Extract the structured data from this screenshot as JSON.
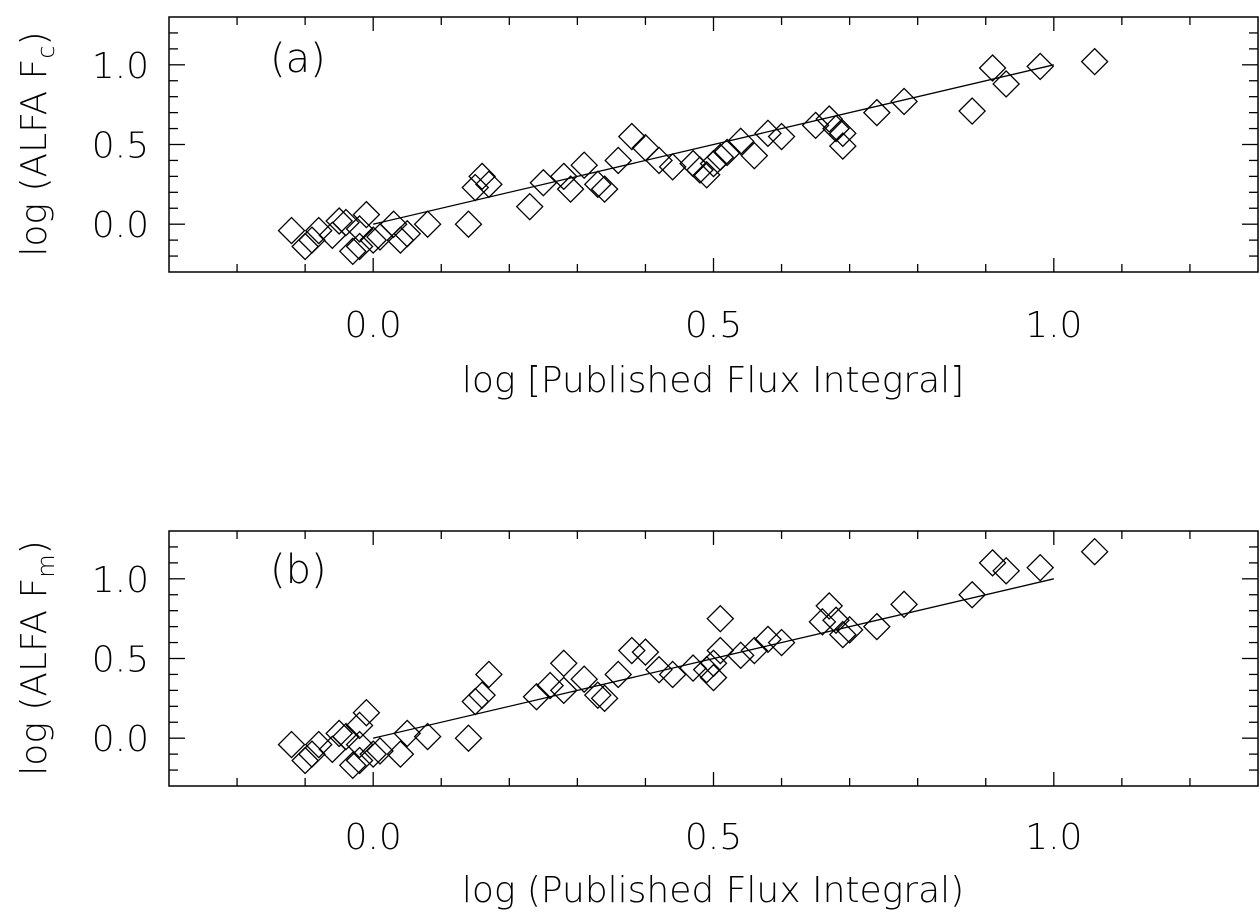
{
  "chart_data": [
    {
      "type": "scatter",
      "panel_label": "(a)",
      "xlabel": "log [Published Flux Integral]",
      "ylabel": "log (ALFA F",
      "ylabel_sub": "c",
      "ylabel_close": ")",
      "xlim": [
        -0.3,
        1.3
      ],
      "ylim": [
        -0.3,
        1.3
      ],
      "x_ticks": [
        0.0,
        0.5,
        1.0
      ],
      "x_tick_labels": [
        "0.0",
        "0.5",
        "1.0"
      ],
      "y_ticks": [
        0.0,
        0.5,
        1.0
      ],
      "y_tick_labels": [
        "0.0",
        "0.5",
        "1.0"
      ],
      "grid": false,
      "line": {
        "x": [
          0.0,
          1.0
        ],
        "y": [
          0.0,
          1.0
        ]
      },
      "points": [
        {
          "x": -0.12,
          "y": -0.04
        },
        {
          "x": -0.1,
          "y": -0.14
        },
        {
          "x": -0.09,
          "y": -0.1
        },
        {
          "x": -0.08,
          "y": -0.04
        },
        {
          "x": -0.06,
          "y": -0.07
        },
        {
          "x": -0.05,
          "y": 0.02
        },
        {
          "x": -0.04,
          "y": 0.01
        },
        {
          "x": -0.03,
          "y": -0.17
        },
        {
          "x": -0.02,
          "y": -0.03
        },
        {
          "x": -0.01,
          "y": 0.06
        },
        {
          "x": -0.02,
          "y": -0.14
        },
        {
          "x": 0.0,
          "y": -0.1
        },
        {
          "x": 0.01,
          "y": -0.08
        },
        {
          "x": 0.03,
          "y": 0.0
        },
        {
          "x": 0.04,
          "y": -0.1
        },
        {
          "x": 0.05,
          "y": -0.06
        },
        {
          "x": 0.08,
          "y": 0.0
        },
        {
          "x": 0.14,
          "y": 0.0
        },
        {
          "x": 0.15,
          "y": 0.23
        },
        {
          "x": 0.16,
          "y": 0.3
        },
        {
          "x": 0.17,
          "y": 0.25
        },
        {
          "x": 0.23,
          "y": 0.11
        },
        {
          "x": 0.25,
          "y": 0.26
        },
        {
          "x": 0.28,
          "y": 0.3
        },
        {
          "x": 0.29,
          "y": 0.22
        },
        {
          "x": 0.31,
          "y": 0.37
        },
        {
          "x": 0.33,
          "y": 0.25
        },
        {
          "x": 0.34,
          "y": 0.22
        },
        {
          "x": 0.36,
          "y": 0.4
        },
        {
          "x": 0.38,
          "y": 0.55
        },
        {
          "x": 0.4,
          "y": 0.48
        },
        {
          "x": 0.42,
          "y": 0.4
        },
        {
          "x": 0.44,
          "y": 0.36
        },
        {
          "x": 0.47,
          "y": 0.38
        },
        {
          "x": 0.48,
          "y": 0.34
        },
        {
          "x": 0.49,
          "y": 0.31
        },
        {
          "x": 0.5,
          "y": 0.38
        },
        {
          "x": 0.51,
          "y": 0.42
        },
        {
          "x": 0.52,
          "y": 0.45
        },
        {
          "x": 0.54,
          "y": 0.52
        },
        {
          "x": 0.56,
          "y": 0.43
        },
        {
          "x": 0.58,
          "y": 0.57
        },
        {
          "x": 0.6,
          "y": 0.55
        },
        {
          "x": 0.65,
          "y": 0.62
        },
        {
          "x": 0.67,
          "y": 0.66
        },
        {
          "x": 0.68,
          "y": 0.6
        },
        {
          "x": 0.69,
          "y": 0.49
        },
        {
          "x": 0.69,
          "y": 0.57
        },
        {
          "x": 0.74,
          "y": 0.7
        },
        {
          "x": 0.78,
          "y": 0.77
        },
        {
          "x": 0.88,
          "y": 0.71
        },
        {
          "x": 0.91,
          "y": 0.98
        },
        {
          "x": 0.93,
          "y": 0.88
        },
        {
          "x": 0.98,
          "y": 0.99
        },
        {
          "x": 1.06,
          "y": 1.02
        }
      ]
    },
    {
      "type": "scatter",
      "panel_label": "(b)",
      "xlabel": "log (Published Flux Integral)",
      "ylabel": "log (ALFA F",
      "ylabel_sub": "m",
      "ylabel_close": ")",
      "xlim": [
        -0.3,
        1.3
      ],
      "ylim": [
        -0.3,
        1.3
      ],
      "x_ticks": [
        0.0,
        0.5,
        1.0
      ],
      "x_tick_labels": [
        "0.0",
        "0.5",
        "1.0"
      ],
      "y_ticks": [
        0.0,
        0.5,
        1.0
      ],
      "y_tick_labels": [
        "0.0",
        "0.5",
        "1.0"
      ],
      "grid": false,
      "line": {
        "x": [
          0.0,
          1.0
        ],
        "y": [
          0.0,
          1.0
        ]
      },
      "points": [
        {
          "x": -0.12,
          "y": -0.04
        },
        {
          "x": -0.1,
          "y": -0.14
        },
        {
          "x": -0.09,
          "y": -0.1
        },
        {
          "x": -0.08,
          "y": -0.04
        },
        {
          "x": -0.06,
          "y": -0.07
        },
        {
          "x": -0.05,
          "y": 0.03
        },
        {
          "x": -0.04,
          "y": 0.01
        },
        {
          "x": -0.03,
          "y": -0.17
        },
        {
          "x": -0.02,
          "y": -0.04
        },
        {
          "x": -0.02,
          "y": 0.08
        },
        {
          "x": -0.01,
          "y": 0.16
        },
        {
          "x": -0.02,
          "y": -0.14
        },
        {
          "x": 0.0,
          "y": -0.1
        },
        {
          "x": 0.01,
          "y": -0.08
        },
        {
          "x": 0.04,
          "y": -0.1
        },
        {
          "x": 0.05,
          "y": 0.03
        },
        {
          "x": 0.08,
          "y": 0.01
        },
        {
          "x": 0.14,
          "y": 0.0
        },
        {
          "x": 0.15,
          "y": 0.23
        },
        {
          "x": 0.16,
          "y": 0.27
        },
        {
          "x": 0.17,
          "y": 0.4
        },
        {
          "x": 0.24,
          "y": 0.26
        },
        {
          "x": 0.26,
          "y": 0.33
        },
        {
          "x": 0.28,
          "y": 0.3
        },
        {
          "x": 0.28,
          "y": 0.47
        },
        {
          "x": 0.31,
          "y": 0.37
        },
        {
          "x": 0.33,
          "y": 0.27
        },
        {
          "x": 0.34,
          "y": 0.25
        },
        {
          "x": 0.36,
          "y": 0.4
        },
        {
          "x": 0.38,
          "y": 0.55
        },
        {
          "x": 0.4,
          "y": 0.54
        },
        {
          "x": 0.42,
          "y": 0.43
        },
        {
          "x": 0.44,
          "y": 0.4
        },
        {
          "x": 0.47,
          "y": 0.44
        },
        {
          "x": 0.49,
          "y": 0.43
        },
        {
          "x": 0.5,
          "y": 0.38
        },
        {
          "x": 0.5,
          "y": 0.47
        },
        {
          "x": 0.51,
          "y": 0.55
        },
        {
          "x": 0.51,
          "y": 0.75
        },
        {
          "x": 0.54,
          "y": 0.52
        },
        {
          "x": 0.56,
          "y": 0.55
        },
        {
          "x": 0.58,
          "y": 0.62
        },
        {
          "x": 0.6,
          "y": 0.6
        },
        {
          "x": 0.66,
          "y": 0.73
        },
        {
          "x": 0.67,
          "y": 0.83
        },
        {
          "x": 0.68,
          "y": 0.74
        },
        {
          "x": 0.69,
          "y": 0.65
        },
        {
          "x": 0.7,
          "y": 0.68
        },
        {
          "x": 0.74,
          "y": 0.7
        },
        {
          "x": 0.78,
          "y": 0.84
        },
        {
          "x": 0.88,
          "y": 0.9
        },
        {
          "x": 0.91,
          "y": 1.1
        },
        {
          "x": 0.93,
          "y": 1.05
        },
        {
          "x": 0.98,
          "y": 1.07
        },
        {
          "x": 1.06,
          "y": 1.17
        }
      ]
    }
  ]
}
